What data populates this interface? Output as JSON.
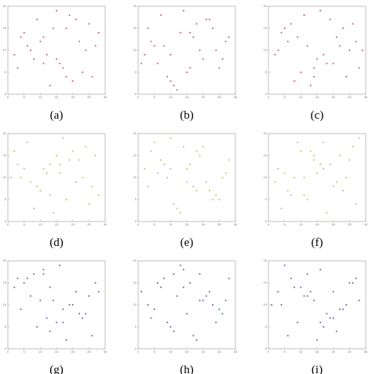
{
  "chart_data": [
    {
      "type": "scatter",
      "label": "(a)",
      "color": "#e0507a",
      "xlim": [
        0,
        30
      ],
      "ylim": [
        0,
        20
      ],
      "xticks": [
        0,
        5,
        10,
        15,
        20,
        25,
        30
      ],
      "yticks": [
        0,
        5,
        10,
        15,
        20
      ],
      "x": [
        12,
        5,
        18,
        22,
        9,
        15,
        27,
        3,
        14,
        20,
        7,
        25,
        11,
        16,
        2,
        19,
        23,
        10,
        13,
        28,
        6,
        17,
        21,
        8,
        24,
        4,
        15,
        26,
        11,
        18
      ],
      "y": [
        9,
        14,
        4,
        12,
        17,
        8,
        11,
        6,
        15,
        3,
        10,
        16,
        13,
        7,
        9,
        18,
        5,
        12,
        2,
        14,
        11,
        6,
        17,
        8,
        10,
        13,
        19,
        4,
        7,
        15
      ]
    },
    {
      "type": "scatter",
      "label": "(b)",
      "color": "#e0507a",
      "xlim": [
        0,
        30
      ],
      "ylim": [
        0,
        20
      ],
      "xticks": [
        0,
        5,
        10,
        15,
        20,
        25,
        30
      ],
      "yticks": [
        0,
        5,
        10,
        15,
        20
      ],
      "x": [
        4,
        16,
        23,
        10,
        7,
        19,
        26,
        13,
        2,
        21,
        15,
        8,
        28,
        11,
        18,
        6,
        24,
        14,
        9,
        27,
        3,
        20,
        12,
        17,
        25,
        5,
        22,
        10,
        16,
        1
      ],
      "y": [
        12,
        6,
        15,
        3,
        18,
        10,
        8,
        14,
        9,
        17,
        5,
        11,
        13,
        2,
        16,
        7,
        10,
        19,
        4,
        12,
        15,
        8,
        1,
        13,
        6,
        11,
        17,
        9,
        14,
        7
      ]
    },
    {
      "type": "scatter",
      "label": "(c)",
      "color": "#e0507a",
      "xlim": [
        0,
        30
      ],
      "ylim": [
        0,
        20
      ],
      "xticks": [
        0,
        5,
        10,
        15,
        20,
        25,
        30
      ],
      "yticks": [
        0,
        5,
        10,
        15,
        20
      ],
      "x": [
        20,
        9,
        3,
        26,
        14,
        11,
        17,
        6,
        23,
        28,
        12,
        8,
        19,
        15,
        4,
        25,
        10,
        21,
        16,
        2,
        13,
        27,
        7,
        18,
        22,
        5,
        24,
        11,
        14,
        29
      ],
      "y": [
        7,
        13,
        10,
        16,
        4,
        18,
        9,
        12,
        15,
        6,
        11,
        3,
        17,
        8,
        14,
        10,
        5,
        13,
        19,
        9,
        2,
        12,
        16,
        7,
        11,
        15,
        4,
        18,
        6,
        10
      ]
    },
    {
      "type": "scatter",
      "label": "(d)",
      "color": "#a8cf5a",
      "xlim": [
        0,
        30
      ],
      "ylim": [
        0,
        20
      ],
      "xticks": [
        0,
        5,
        10,
        15,
        20,
        25,
        30
      ],
      "yticks": [
        0,
        5,
        10,
        15,
        20
      ],
      "x": [
        18,
        11,
        26,
        15,
        4,
        24,
        8,
        13,
        21,
        2,
        16,
        28,
        6,
        19,
        10,
        23,
        14,
        3,
        27,
        9,
        17,
        12,
        25,
        5,
        20,
        7,
        22,
        13,
        1,
        16
      ],
      "y": [
        5,
        12,
        8,
        15,
        10,
        17,
        3,
        13,
        9,
        16,
        11,
        6,
        18,
        14,
        7,
        10,
        2,
        13,
        15,
        8,
        19,
        11,
        4,
        12,
        16,
        9,
        14,
        6,
        10,
        13
      ]
    },
    {
      "type": "scatter",
      "label": "(e)",
      "color": "#a8cf5a",
      "xlim": [
        0,
        30
      ],
      "ylim": [
        0,
        20
      ],
      "xticks": [
        0,
        5,
        10,
        15,
        20,
        25,
        30
      ],
      "yticks": [
        0,
        5,
        10,
        15,
        20
      ],
      "x": [
        7,
        21,
        14,
        25,
        10,
        3,
        18,
        27,
        12,
        16,
        5,
        22,
        9,
        19,
        24,
        2,
        15,
        11,
        28,
        6,
        20,
        13,
        17,
        8,
        26,
        4,
        23,
        10,
        15,
        18
      ],
      "y": [
        14,
        9,
        17,
        5,
        12,
        8,
        16,
        11,
        3,
        13,
        18,
        7,
        10,
        15,
        6,
        12,
        9,
        4,
        14,
        11,
        17,
        2,
        8,
        13,
        10,
        16,
        5,
        19,
        12,
        7
      ]
    },
    {
      "type": "scatter",
      "label": "(f)",
      "color": "#a8cf5a",
      "xlim": [
        0,
        30
      ],
      "ylim": [
        0,
        20
      ],
      "xticks": [
        0,
        5,
        10,
        15,
        20,
        25,
        30
      ],
      "yticks": [
        0,
        5,
        10,
        15,
        20
      ],
      "x": [
        24,
        13,
        6,
        19,
        27,
        9,
        15,
        2,
        22,
        11,
        17,
        26,
        4,
        14,
        20,
        8,
        28,
        12,
        16,
        5,
        23,
        10,
        18,
        3,
        21,
        14,
        7,
        25,
        11,
        17
      ],
      "y": [
        10,
        16,
        7,
        13,
        4,
        18,
        11,
        9,
        15,
        6,
        12,
        17,
        3,
        14,
        8,
        10,
        19,
        5,
        13,
        11,
        7,
        16,
        2,
        12,
        9,
        15,
        6,
        14,
        10,
        18
      ]
    },
    {
      "type": "scatter",
      "label": "(g)",
      "color": "#5563c4",
      "xlim": [
        0,
        30
      ],
      "ylim": [
        0,
        20
      ],
      "xticks": [
        0,
        5,
        10,
        15,
        20,
        25,
        30
      ],
      "yticks": [
        0,
        5,
        10,
        15,
        20
      ],
      "x": [
        10,
        23,
        5,
        17,
        28,
        13,
        8,
        20,
        15,
        2,
        25,
        11,
        18,
        6,
        22,
        14,
        27,
        9,
        16,
        4,
        21,
        12,
        19,
        3,
        26,
        7,
        24,
        13,
        17,
        11
      ],
      "y": [
        11,
        7,
        15,
        9,
        13,
        4,
        17,
        10,
        6,
        14,
        12,
        18,
        2,
        16,
        8,
        11,
        15,
        5,
        19,
        9,
        13,
        7,
        10,
        16,
        3,
        12,
        8,
        14,
        6,
        17
      ]
    },
    {
      "type": "scatter",
      "label": "(h)",
      "color": "#5563c4",
      "xlim": [
        0,
        30
      ],
      "ylim": [
        0,
        20
      ],
      "xticks": [
        0,
        5,
        10,
        15,
        20,
        25,
        30
      ],
      "yticks": [
        0,
        5,
        10,
        15,
        20
      ],
      "x": [
        15,
        6,
        27,
        11,
        19,
        3,
        22,
        9,
        14,
        25,
        7,
        17,
        12,
        28,
        4,
        20,
        10,
        16,
        23,
        1,
        13,
        26,
        8,
        18,
        21,
        5,
        14,
        24,
        11,
        19
      ],
      "y": [
        8,
        15,
        11,
        4,
        17,
        10,
        13,
        6,
        18,
        9,
        14,
        3,
        12,
        16,
        7,
        11,
        5,
        15,
        10,
        13,
        19,
        8,
        16,
        2,
        12,
        9,
        14,
        6,
        17,
        11
      ]
    },
    {
      "type": "scatter",
      "label": "(i)",
      "color": "#5563c4",
      "xlim": [
        0,
        30
      ],
      "ylim": [
        0,
        20
      ],
      "xticks": [
        0,
        5,
        10,
        15,
        20,
        25,
        30
      ],
      "yticks": [
        0,
        5,
        10,
        15,
        20
      ],
      "x": [
        3,
        17,
        12,
        24,
        8,
        20,
        14,
        27,
        6,
        11,
        22,
        16,
        9,
        25,
        1,
        18,
        13,
        21,
        5,
        28,
        10,
        15,
        23,
        7,
        19,
        12,
        26,
        4,
        16,
        20
      ],
      "y": [
        13,
        5,
        17,
        10,
        14,
        7,
        11,
        16,
        3,
        12,
        9,
        18,
        6,
        15,
        10,
        8,
        13,
        4,
        19,
        11,
        14,
        2,
        9,
        16,
        7,
        12,
        15,
        10,
        6,
        13
      ]
    }
  ]
}
